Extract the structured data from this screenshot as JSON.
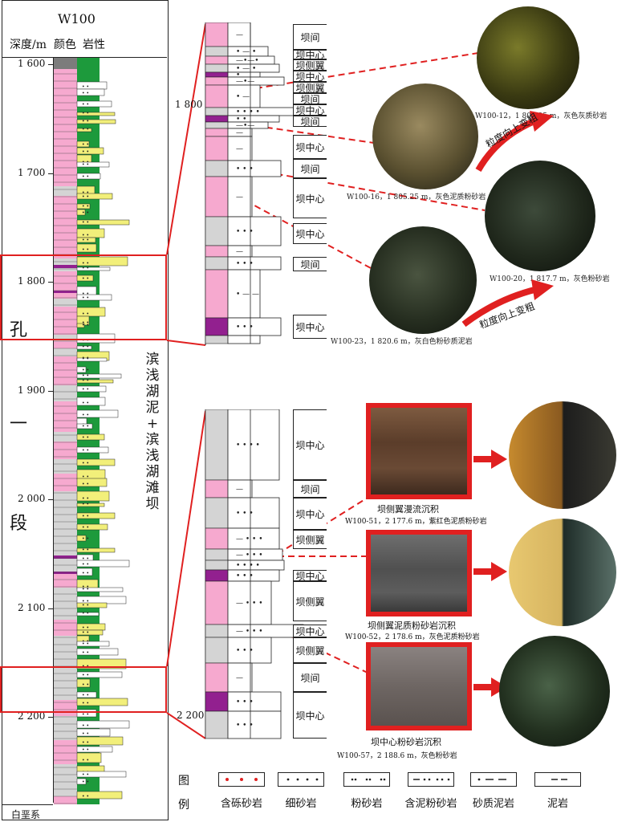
{
  "well": "W100",
  "header": {
    "depth_label": "深度/m",
    "color_label": "颜色",
    "lith_label": "岩性"
  },
  "depth_ticks": [
    "1 600",
    "1 700",
    "1 800",
    "1 900",
    "2 000",
    "2 100",
    "2 200"
  ],
  "stratum_chars": [
    "孔",
    "一",
    "段"
  ],
  "bottom_label": "白垩系",
  "facies_label_chars": [
    "滨",
    "浅",
    "湖",
    "泥",
    "+",
    "滨",
    "浅",
    "湖",
    "滩",
    "坝"
  ],
  "upper_detail": {
    "depth_ticks": [
      "1 800"
    ],
    "facies": [
      "坝间",
      "坝中心",
      "坝侧翼",
      "坝中心",
      "坝侧翼",
      "坝间",
      "坝中心",
      "坝间",
      "坝中心",
      "坝间",
      "坝中心",
      "坝中心",
      "坝间",
      "坝中心"
    ]
  },
  "lower_detail": {
    "depth_ticks": [
      "2 200"
    ],
    "facies": [
      "坝中心",
      "坝间",
      "坝中心",
      "坝侧翼",
      "坝中心",
      "坝侧翼",
      "坝中心",
      "坝侧翼",
      "坝间",
      "坝中心"
    ]
  },
  "thin_sections": [
    {
      "caption": "W100-12，1 801.95 m，灰色灰质砂岩"
    },
    {
      "caption": "W100-16，1 805.25 m，灰色泥质粉砂岩"
    },
    {
      "caption": "W100-20，1 817.7 m，灰色粉砂岩"
    },
    {
      "caption": "W100-23，1 820.6 m，灰白色粉砂质泥岩"
    }
  ],
  "arrows": [
    "粒度向上变粗",
    "粒度向上变粗"
  ],
  "core_photos": [
    {
      "title": "坝侧翼漫流沉积",
      "caption": "W100-51，2 177.6 m，紫红色泥质粉砂岩"
    },
    {
      "title": "坝侧翼泥质粉砂岩沉积",
      "caption": "W100-52，2 178.6 m，灰色泥质粉砂岩"
    },
    {
      "title": "坝中心粉砂岩沉积",
      "caption": "W100-57，2 188.6 m，灰色粉砂岩"
    }
  ],
  "legend": {
    "title_chars": [
      "图",
      "例"
    ],
    "items": [
      "含砾砂岩",
      "细砂岩",
      "粉砂岩",
      "含泥粉砂岩",
      "砂质泥岩",
      "泥岩"
    ]
  },
  "colors": {
    "pink": "#f6a9cf",
    "green": "#1d9a3c",
    "yellow": "#f2ef7a",
    "gray": "#d4d4d4",
    "purple": "#92208f",
    "red": "#e02020"
  }
}
